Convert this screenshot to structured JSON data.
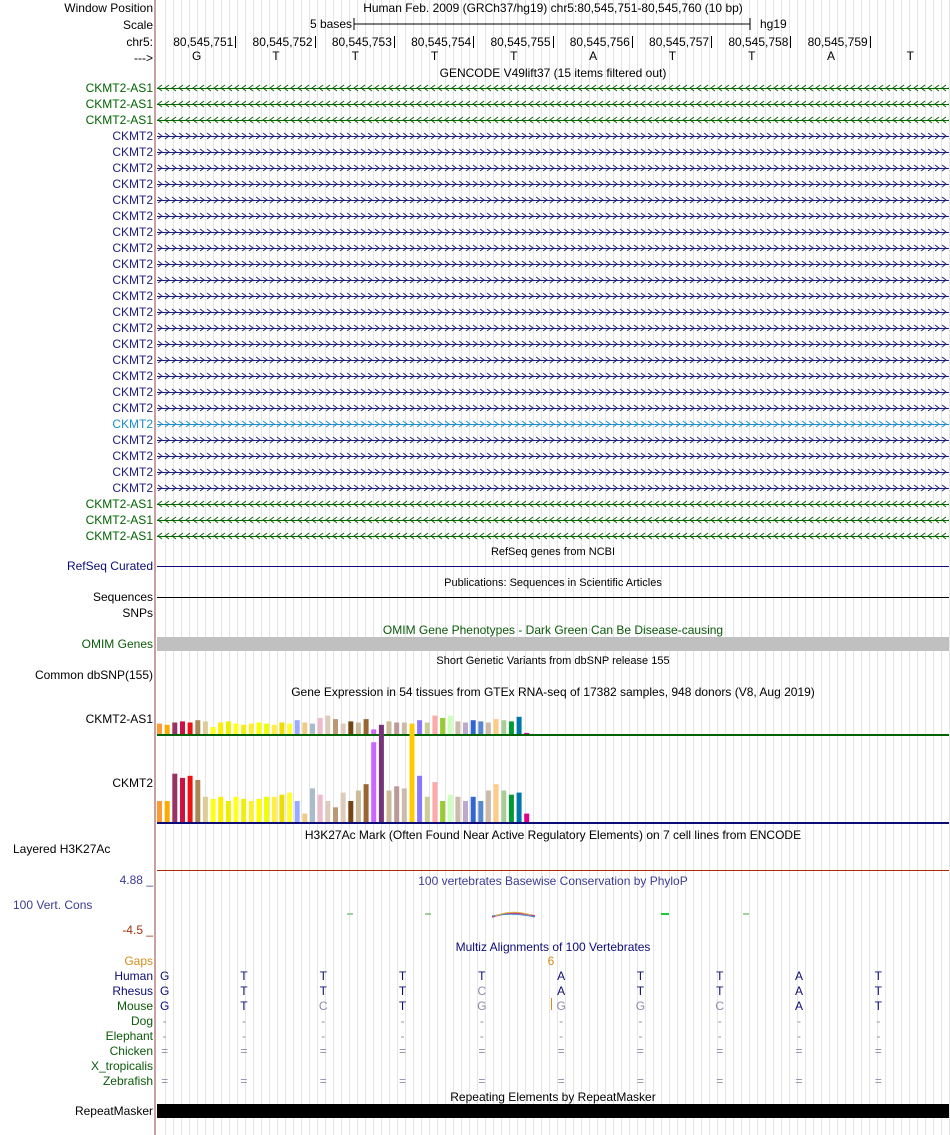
{
  "colors": {
    "gencode_green": "#006400",
    "gencode_navy": "#1e1e78",
    "gencode_blue": "#1e8cc8",
    "refseq": "#0c0c78",
    "omim": "#0b5a0b",
    "phylop": "#3c3c96",
    "phylop_low": "#a0320a",
    "gaps": "#d28c1e",
    "multiz_title": "#0c0c78",
    "h3k27_line": "#b42800"
  },
  "header": {
    "window_position_label": "Window Position",
    "scale_label": "Scale",
    "chrom_label": "chr5:",
    "strand_label": "--->",
    "title": "Human Feb. 2009 (GRCh37/hg19)   chr5:80,545,751-80,545,760 (10 bp)",
    "scale_text": "5 bases",
    "assembly": "hg19"
  },
  "coordinates": [
    "80,545,751",
    "80,545,752",
    "80,545,753",
    "80,545,754",
    "80,545,755",
    "80,545,756",
    "80,545,757",
    "80,545,758",
    "80,545,759"
  ],
  "bases": [
    "G",
    "T",
    "T",
    "T",
    "T",
    "A",
    "T",
    "T",
    "A",
    "T"
  ],
  "gencode": {
    "title": "GENCODE V49lift37 (15 items filtered out)",
    "items": [
      {
        "name": "CKMT2-AS1",
        "strand": "-",
        "color": "#006400"
      },
      {
        "name": "CKMT2-AS1",
        "strand": "-",
        "color": "#006400"
      },
      {
        "name": "CKMT2-AS1",
        "strand": "-",
        "color": "#006400"
      },
      {
        "name": "CKMT2",
        "strand": "+",
        "color": "#1e1e78"
      },
      {
        "name": "CKMT2",
        "strand": "+",
        "color": "#1e1e78"
      },
      {
        "name": "CKMT2",
        "strand": "+",
        "color": "#1e1e78"
      },
      {
        "name": "CKMT2",
        "strand": "+",
        "color": "#1e1e78"
      },
      {
        "name": "CKMT2",
        "strand": "+",
        "color": "#1e1e78"
      },
      {
        "name": "CKMT2",
        "strand": "+",
        "color": "#1e1e78"
      },
      {
        "name": "CKMT2",
        "strand": "+",
        "color": "#1e1e78"
      },
      {
        "name": "CKMT2",
        "strand": "+",
        "color": "#1e1e78"
      },
      {
        "name": "CKMT2",
        "strand": "+",
        "color": "#1e1e78"
      },
      {
        "name": "CKMT2",
        "strand": "+",
        "color": "#1e1e78"
      },
      {
        "name": "CKMT2",
        "strand": "+",
        "color": "#1e1e78"
      },
      {
        "name": "CKMT2",
        "strand": "+",
        "color": "#1e1e78"
      },
      {
        "name": "CKMT2",
        "strand": "+",
        "color": "#1e1e78"
      },
      {
        "name": "CKMT2",
        "strand": "+",
        "color": "#1e1e78"
      },
      {
        "name": "CKMT2",
        "strand": "+",
        "color": "#1e1e78"
      },
      {
        "name": "CKMT2",
        "strand": "+",
        "color": "#1e1e78"
      },
      {
        "name": "CKMT2",
        "strand": "+",
        "color": "#1e1e78"
      },
      {
        "name": "CKMT2",
        "strand": "+",
        "color": "#1e1e78"
      },
      {
        "name": "CKMT2",
        "strand": "+",
        "color": "#1e8cc8"
      },
      {
        "name": "CKMT2",
        "strand": "+",
        "color": "#1e1e78"
      },
      {
        "name": "CKMT2",
        "strand": "+",
        "color": "#1e1e78"
      },
      {
        "name": "CKMT2",
        "strand": "+",
        "color": "#1e1e78"
      },
      {
        "name": "CKMT2",
        "strand": "+",
        "color": "#1e1e78"
      },
      {
        "name": "CKMT2-AS1",
        "strand": "-",
        "color": "#006400"
      },
      {
        "name": "CKMT2-AS1",
        "strand": "-",
        "color": "#006400"
      },
      {
        "name": "CKMT2-AS1",
        "strand": "-",
        "color": "#006400"
      }
    ]
  },
  "refseq": {
    "title": "RefSeq genes from NCBI",
    "label": "RefSeq Curated"
  },
  "publications": {
    "title": "Publications: Sequences in Scientific Articles",
    "label": "Sequences"
  },
  "snps_label": "SNPs",
  "omim": {
    "title": "OMIM Gene Phenotypes - Dark Green Can Be Disease-causing",
    "label": "OMIM Genes"
  },
  "dbsnp": {
    "title": "Short Genetic Variants from dbSNP release 155",
    "label": "Common dbSNP(155)"
  },
  "gtex": {
    "title": "Gene Expression in 54 tissues from GTEx RNA-seq of 17382 samples, 948 donors (V8, Aug 2019)",
    "colors": [
      "#ff9933",
      "#ffaa00",
      "#993366",
      "#cc1144",
      "#ee1111",
      "#aa8855",
      "#ddcc99",
      "#ffff11",
      "#ffee00",
      "#eeee00",
      "#ffff22",
      "#eeee11",
      "#ffee33",
      "#ffff00",
      "#eeff00",
      "#ffee44",
      "#eedd00",
      "#ffff33",
      "#99aaff",
      "#eecc88",
      "#aabbcc",
      "#eebbcc",
      "#ddccbb",
      "#bb9977",
      "#ddccbb",
      "#774411",
      "#ccbb99",
      "#996633",
      "#cc66ff",
      "#773377",
      "#ccbb99",
      "#bb9999",
      "#ccbbaa",
      "#ffcc00",
      "#8877ff",
      "#cccc99",
      "#ffaaaa",
      "#99cc33",
      "#ccffbb",
      "#ccbbaa",
      "#bbaacc",
      "#3366cc",
      "#5588cc",
      "#ccbbaa",
      "#ffcc88",
      "#aacc99",
      "#009933",
      "#0077aa",
      "#dd0088"
    ],
    "genes": [
      {
        "name": "CKMT2-AS1",
        "baseline_color": "#006400",
        "values": [
          9,
          8,
          10,
          11,
          10,
          12,
          11,
          6,
          10,
          11,
          9,
          8,
          9,
          10,
          9,
          8,
          10,
          9,
          12,
          10,
          9,
          14,
          16,
          13,
          9,
          11,
          10,
          13,
          4,
          8,
          11,
          10,
          10,
          9,
          12,
          10,
          16,
          14,
          16,
          11,
          10,
          12,
          11,
          10,
          13,
          12,
          11,
          15,
          1
        ]
      },
      {
        "name": "CKMT2",
        "baseline_color": "#0c0c78",
        "values": [
          10,
          10,
          23,
          21,
          22,
          20,
          12,
          11,
          12,
          10,
          12,
          11,
          10,
          11,
          12,
          12,
          13,
          14,
          10,
          4,
          16,
          13,
          10,
          7,
          14,
          10,
          15,
          18,
          38,
          42,
          15,
          17,
          16,
          42,
          22,
          12,
          19,
          10,
          13,
          12,
          10,
          12,
          10,
          15,
          18,
          15,
          13,
          14,
          4
        ]
      }
    ]
  },
  "h3k27ac": {
    "title": "H3K27Ac Mark (Often Found Near Active Regulatory Elements) on 7 cell lines from ENCODE",
    "label": "Layered H3K27Ac"
  },
  "phylop": {
    "title": "100 vertebrates Basewise Conservation by PhyloP",
    "label": "100 Vert. Cons",
    "max": "4.88 _",
    "min": "-4.5 _"
  },
  "multiz": {
    "title": "Multiz Alignments of 100 Vertebrates",
    "gap_label": "Gaps",
    "gap_count": "6",
    "species": [
      {
        "name": "Human",
        "color": "#0c0c78",
        "bases": [
          "G",
          "T",
          "T",
          "T",
          "T",
          "A",
          "T",
          "T",
          "A",
          "T"
        ],
        "match": [
          1,
          1,
          1,
          1,
          1,
          1,
          1,
          1,
          1,
          1
        ]
      },
      {
        "name": "Rhesus",
        "color": "#0c0c78",
        "bases": [
          "G",
          "T",
          "T",
          "T",
          "C",
          "A",
          "T",
          "T",
          "A",
          "T"
        ],
        "match": [
          1,
          1,
          1,
          1,
          0,
          1,
          1,
          1,
          1,
          1
        ]
      },
      {
        "name": "Mouse",
        "color": "#0b5a0b",
        "bases": [
          "G",
          "T",
          "C",
          "T",
          "G",
          "G",
          "G",
          "C",
          "A",
          "T"
        ],
        "match": [
          1,
          1,
          0,
          1,
          0,
          0,
          0,
          0,
          1,
          1
        ]
      },
      {
        "name": "Dog",
        "color": "#0b5a0b",
        "bases": [
          "-",
          "-",
          "-",
          "-",
          "-",
          "-",
          "-",
          "-",
          "-",
          "-"
        ],
        "match": [
          0,
          0,
          0,
          0,
          0,
          0,
          0,
          0,
          0,
          0
        ]
      },
      {
        "name": "Elephant",
        "color": "#0b5a0b",
        "bases": [
          "-",
          "-",
          "-",
          "-",
          "-",
          "-",
          "-",
          "-",
          "-",
          "-"
        ],
        "match": [
          0,
          0,
          0,
          0,
          0,
          0,
          0,
          0,
          0,
          0
        ]
      },
      {
        "name": "Chicken",
        "color": "#0b5a0b",
        "bases": [
          "=",
          "=",
          "=",
          "=",
          "=",
          "=",
          "=",
          "=",
          "=",
          "="
        ],
        "match": [
          0,
          0,
          0,
          0,
          0,
          0,
          0,
          0,
          0,
          0
        ]
      },
      {
        "name": "X_tropicalis",
        "color": "#0b5a0b",
        "bases": [
          "",
          "",
          "",
          "",
          "",
          "",
          "",
          "",
          "",
          ""
        ],
        "match": [
          0,
          0,
          0,
          0,
          0,
          0,
          0,
          0,
          0,
          0
        ]
      },
      {
        "name": "Zebrafish",
        "color": "#0b5a0b",
        "bases": [
          "=",
          "=",
          "=",
          "=",
          "=",
          "=",
          "=",
          "=",
          "=",
          "="
        ],
        "match": [
          0,
          0,
          0,
          0,
          0,
          0,
          0,
          0,
          0,
          0
        ]
      }
    ]
  },
  "repeatmasker": {
    "title": "Repeating Elements by RepeatMasker",
    "label": "RepeatMasker"
  }
}
